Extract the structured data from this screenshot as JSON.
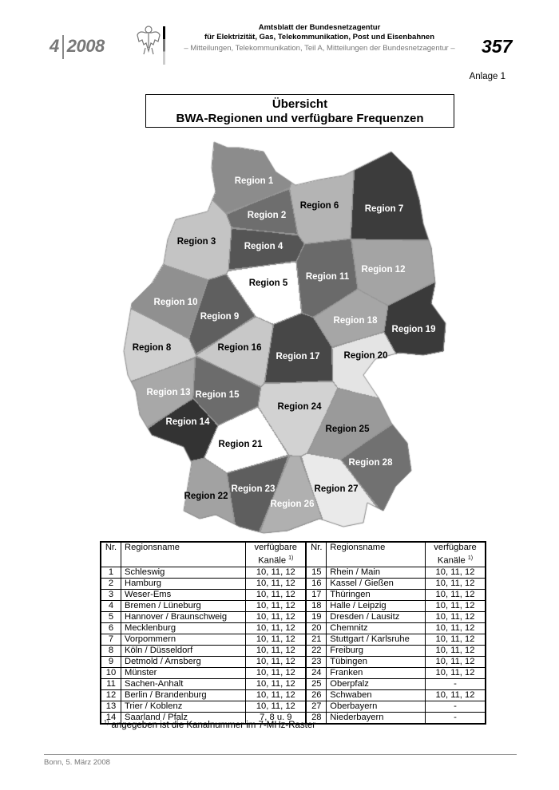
{
  "header": {
    "issue_number": "4",
    "issue_year": "2008",
    "line1": "Amtsblatt der Bundesnetzagentur",
    "line2": "für Elektrizität, Gas, Telekommunikation, Post und Eisenbahnen",
    "line3": "– Mitteilungen, Telekommunikation, Teil A, Mitteilungen der Bundesnetzagentur –",
    "page_number": "357",
    "logo_icon": "federal-eagle"
  },
  "annex": "Anlage 1",
  "title": {
    "line1": "Übersicht",
    "line2": "BWA-Regionen und verfügbare Frequenzen"
  },
  "map": {
    "regions": [
      {
        "label": "Region 1",
        "shade": "#8c8c8c",
        "text": "#ffffff"
      },
      {
        "label": "Region 2",
        "shade": "#6e6e6e",
        "text": "#ffffff"
      },
      {
        "label": "Region 3",
        "shade": "#c4c4c4",
        "text": "#000000"
      },
      {
        "label": "Region 4",
        "shade": "#555555",
        "text": "#ffffff"
      },
      {
        "label": "Region 5",
        "shade": "#ffffff",
        "text": "#000000"
      },
      {
        "label": "Region 6",
        "shade": "#b4b4b4",
        "text": "#000000"
      },
      {
        "label": "Region 7",
        "shade": "#3c3c3c",
        "text": "#ffffff"
      },
      {
        "label": "Region 8",
        "shade": "#d0d0d0",
        "text": "#000000"
      },
      {
        "label": "Region 9",
        "shade": "#5f5f5f",
        "text": "#ffffff"
      },
      {
        "label": "Region 10",
        "shade": "#909090",
        "text": "#ffffff"
      },
      {
        "label": "Region 11",
        "shade": "#6a6a6a",
        "text": "#ffffff"
      },
      {
        "label": "Region 12",
        "shade": "#a4a4a4",
        "text": "#ffffff"
      },
      {
        "label": "Region 13",
        "shade": "#a8a8a8",
        "text": "#ffffff"
      },
      {
        "label": "Region 14",
        "shade": "#333333",
        "text": "#ffffff"
      },
      {
        "label": "Region 15",
        "shade": "#6c6c6c",
        "text": "#ffffff"
      },
      {
        "label": "Region 16",
        "shade": "#c8c8c8",
        "text": "#000000"
      },
      {
        "label": "Region 17",
        "shade": "#474747",
        "text": "#ffffff"
      },
      {
        "label": "Region 18",
        "shade": "#a6a6a6",
        "text": "#ffffff"
      },
      {
        "label": "Region 19",
        "shade": "#3a3a3a",
        "text": "#ffffff"
      },
      {
        "label": "Region 20",
        "shade": "#e4e4e4",
        "text": "#000000"
      },
      {
        "label": "Region 21",
        "shade": "#ffffff",
        "text": "#000000"
      },
      {
        "label": "Region 22",
        "shade": "#a2a2a2",
        "text": "#000000"
      },
      {
        "label": "Region 23",
        "shade": "#5e5e5e",
        "text": "#ffffff"
      },
      {
        "label": "Region 24",
        "shade": "#d2d2d2",
        "text": "#000000"
      },
      {
        "label": "Region 25",
        "shade": "#9a9a9a",
        "text": "#000000"
      },
      {
        "label": "Region 26",
        "shade": "#b0b0b0",
        "text": "#ffffff"
      },
      {
        "label": "Region 27",
        "shade": "#eaeaea",
        "text": "#000000"
      },
      {
        "label": "Region 28",
        "shade": "#717171",
        "text": "#ffffff"
      }
    ]
  },
  "table": {
    "headers": {
      "nr": "Nr.",
      "name": "Regionsname",
      "channels_line1": "verfügbare",
      "channels_line2": "Kanäle",
      "footnote_mark": "1)"
    },
    "left": [
      {
        "nr": "1",
        "name": "Schleswig",
        "channels": "10, 11, 12"
      },
      {
        "nr": "2",
        "name": "Hamburg",
        "channels": "10, 11, 12"
      },
      {
        "nr": "3",
        "name": "Weser-Ems",
        "channels": "10, 11, 12"
      },
      {
        "nr": "4",
        "name": "Bremen / Lüneburg",
        "channels": "10, 11, 12"
      },
      {
        "nr": "5",
        "name": "Hannover / Braunschweig",
        "channels": "10, 11, 12"
      },
      {
        "nr": "6",
        "name": "Mecklenburg",
        "channels": "10, 11, 12"
      },
      {
        "nr": "7",
        "name": "Vorpommern",
        "channels": "10, 11, 12"
      },
      {
        "nr": "8",
        "name": "Köln / Düsseldorf",
        "channels": "10, 11, 12"
      },
      {
        "nr": "9",
        "name": "Detmold / Arnsberg",
        "channels": "10, 11, 12"
      },
      {
        "nr": "10",
        "name": "Münster",
        "channels": "10, 11, 12"
      },
      {
        "nr": "11",
        "name": "Sachen-Anhalt",
        "channels": "10, 11, 12"
      },
      {
        "nr": "12",
        "name": "Berlin / Brandenburg",
        "channels": "10, 11, 12"
      },
      {
        "nr": "13",
        "name": "Trier / Koblenz",
        "channels": "10, 11, 12"
      },
      {
        "nr": "14",
        "name": "Saarland / Pfalz",
        "channels": "7, 8 u. 9"
      }
    ],
    "right": [
      {
        "nr": "15",
        "name": "Rhein / Main",
        "channels": "10, 11, 12"
      },
      {
        "nr": "16",
        "name": "Kassel / Gießen",
        "channels": "10, 11, 12"
      },
      {
        "nr": "17",
        "name": "Thüringen",
        "channels": "10, 11, 12"
      },
      {
        "nr": "18",
        "name": "Halle / Leipzig",
        "channels": "10, 11, 12"
      },
      {
        "nr": "19",
        "name": "Dresden / Lausitz",
        "channels": "10, 11, 12"
      },
      {
        "nr": "20",
        "name": "Chemnitz",
        "channels": "10, 11, 12"
      },
      {
        "nr": "21",
        "name": "Stuttgart / Karlsruhe",
        "channels": "10, 11, 12"
      },
      {
        "nr": "22",
        "name": "Freiburg",
        "channels": "10, 11, 12"
      },
      {
        "nr": "23",
        "name": "Tübingen",
        "channels": "10, 11, 12"
      },
      {
        "nr": "24",
        "name": "Franken",
        "channels": "10, 11, 12"
      },
      {
        "nr": "25",
        "name": "Oberpfalz",
        "channels": "-"
      },
      {
        "nr": "26",
        "name": "Schwaben",
        "channels": "10, 11, 12"
      },
      {
        "nr": "27",
        "name": "Oberbayern",
        "channels": "-"
      },
      {
        "nr": "28",
        "name": "Niederbayern",
        "channels": "-"
      }
    ],
    "footnote_mark": "1)",
    "footnote": "angegeben ist die Kanalnummer im 7-MHz-Raster"
  },
  "footer": {
    "place_date": "Bonn, 5. März 2008"
  }
}
